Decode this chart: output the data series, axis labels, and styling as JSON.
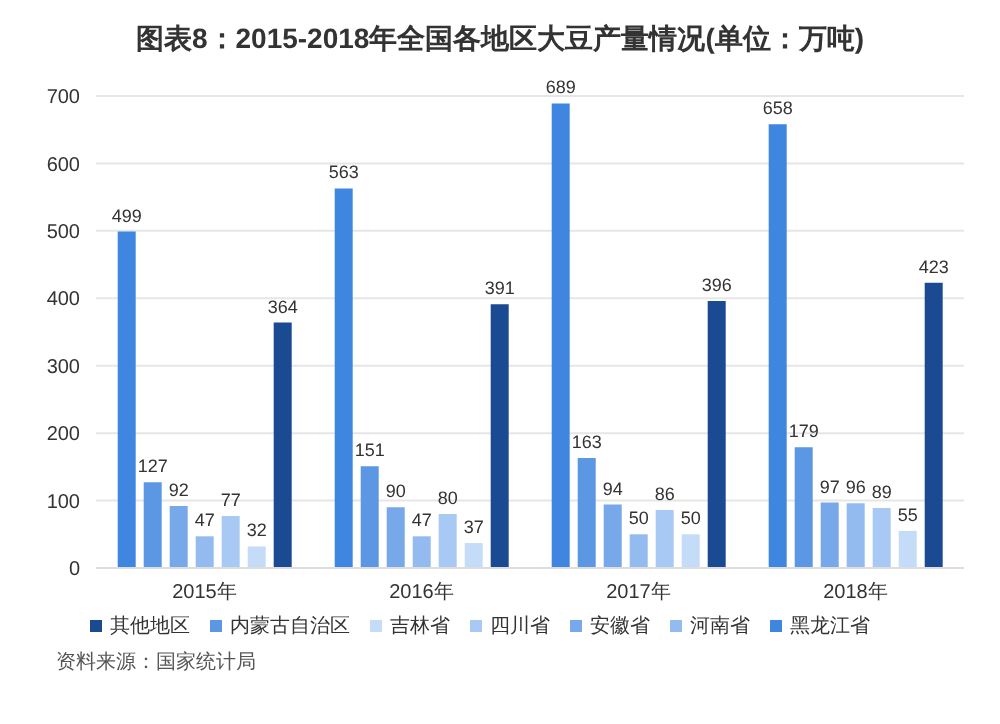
{
  "chart_data": {
    "type": "bar",
    "title": "图表8：2015-2018年全国各地区大豆产量情况(单位：万吨)",
    "categories": [
      "2015年",
      "2016年",
      "2017年",
      "2018年"
    ],
    "series": [
      {
        "name": "黑龙江省",
        "color": "#3f86e0",
        "values": [
          499,
          563,
          689,
          658
        ]
      },
      {
        "name": "内蒙古自治区",
        "color": "#5b97e3",
        "values": [
          127,
          151,
          163,
          179
        ]
      },
      {
        "name": "安徽省",
        "color": "#77a8ea",
        "values": [
          92,
          90,
          94,
          97
        ]
      },
      {
        "name": "河南省",
        "color": "#93bbef",
        "values": [
          47,
          47,
          50,
          96
        ]
      },
      {
        "name": "四川省",
        "color": "#a8c9f4",
        "values": [
          77,
          80,
          86,
          89
        ]
      },
      {
        "name": "吉林省",
        "color": "#c5dcf8",
        "values": [
          32,
          37,
          50,
          55
        ]
      },
      {
        "name": "其他地区",
        "color": "#1a4a92",
        "values": [
          364,
          391,
          396,
          423
        ]
      }
    ],
    "ylim": [
      0,
      700
    ],
    "yticks": [
      0,
      100,
      200,
      300,
      400,
      500,
      600,
      700
    ],
    "grid": "y",
    "legend": "bottom",
    "data_labels": true,
    "annotations": [
      "资料来源：国家统计局"
    ]
  }
}
